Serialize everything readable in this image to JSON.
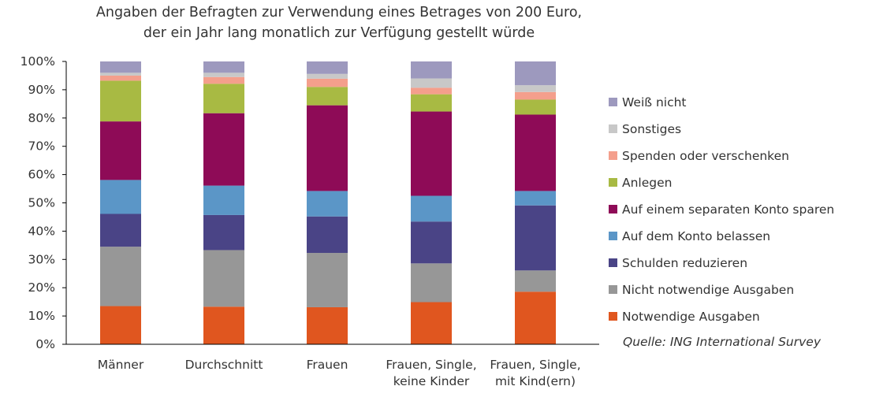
{
  "chart_data": {
    "type": "bar",
    "stacked": true,
    "title": [
      "Angaben der Befragten zur Verwendung eines Betrages von 200 Euro,",
      "der ein Jahr lang monatlich zur Verfügung gestellt würde"
    ],
    "categories": [
      [
        "Männer"
      ],
      [
        "Durchschnitt"
      ],
      [
        "Frauen"
      ],
      [
        "Frauen, Single,",
        "keine Kinder"
      ],
      [
        "Frauen, Single,",
        "mit Kind(ern)"
      ]
    ],
    "ylim": [
      0,
      100
    ],
    "yticks": [
      "0%",
      "10%",
      "20%",
      "30%",
      "40%",
      "50%",
      "60%",
      "70%",
      "80%",
      "90%",
      "100%"
    ],
    "grid": false,
    "legend_position": "right",
    "series": [
      {
        "name": "Notwendige Ausgaben",
        "color": "#E0561F",
        "values": [
          13.5,
          13.3,
          13.1,
          14.9,
          18.6
        ]
      },
      {
        "name": "Nicht notwendige Ausgaben",
        "color": "#979797",
        "values": [
          21.0,
          20.0,
          19.2,
          13.7,
          7.5
        ]
      },
      {
        "name": "Schulden reduzieren",
        "color": "#4A4486",
        "values": [
          11.6,
          12.4,
          12.9,
          14.8,
          23.0
        ]
      },
      {
        "name": "Auf dem Konto belassen",
        "color": "#5B96C7",
        "values": [
          12.0,
          10.4,
          9.0,
          9.1,
          5.1
        ]
      },
      {
        "name": "Auf einem separaten Konto sparen",
        "color": "#8E0B57",
        "values": [
          20.7,
          25.6,
          30.3,
          29.8,
          27.0
        ]
      },
      {
        "name": "Anlegen",
        "color": "#A8BA43",
        "values": [
          14.4,
          10.4,
          6.5,
          6.1,
          5.3
        ]
      },
      {
        "name": "Spenden oder verschenken",
        "color": "#F49F8C",
        "values": [
          1.8,
          2.4,
          2.9,
          2.3,
          2.7
        ]
      },
      {
        "name": "Sonstiges",
        "color": "#C8C8C8",
        "values": [
          1.0,
          1.5,
          1.7,
          3.3,
          2.4
        ]
      },
      {
        "name": "Weiß nicht",
        "color": "#9D99BE",
        "values": [
          4.0,
          4.0,
          4.4,
          6.0,
          8.4
        ]
      }
    ]
  },
  "source": "Quelle: ING International Survey"
}
